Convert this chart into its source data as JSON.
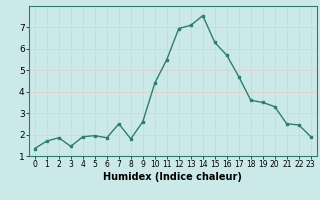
{
  "x": [
    0,
    1,
    2,
    3,
    4,
    5,
    6,
    7,
    8,
    9,
    10,
    11,
    12,
    13,
    14,
    15,
    16,
    17,
    18,
    19,
    20,
    21,
    22,
    23
  ],
  "y": [
    1.35,
    1.7,
    1.85,
    1.45,
    1.9,
    1.95,
    1.85,
    2.5,
    1.8,
    2.6,
    4.4,
    5.5,
    6.95,
    7.1,
    7.55,
    6.3,
    5.7,
    4.7,
    3.6,
    3.5,
    3.3,
    2.5,
    2.45,
    1.9
  ],
  "line_color": "#2e7d6e",
  "marker": "s",
  "marker_size": 2,
  "linewidth": 1.0,
  "xlabel": "Humidex (Indice chaleur)",
  "xlabel_fontsize": 7,
  "xlabel_fontweight": "bold",
  "ylim": [
    1,
    8
  ],
  "xlim": [
    -0.5,
    23.5
  ],
  "yticks": [
    1,
    2,
    3,
    4,
    5,
    6,
    7
  ],
  "xticks": [
    0,
    1,
    2,
    3,
    4,
    5,
    6,
    7,
    8,
    9,
    10,
    11,
    12,
    13,
    14,
    15,
    16,
    17,
    18,
    19,
    20,
    21,
    22,
    23
  ],
  "xtick_fontsize": 5.5,
  "ytick_fontsize": 6.5,
  "bg_color": "#cce9e9",
  "grid_color": "#e8c8c8",
  "spine_color": "#2e7d6e"
}
